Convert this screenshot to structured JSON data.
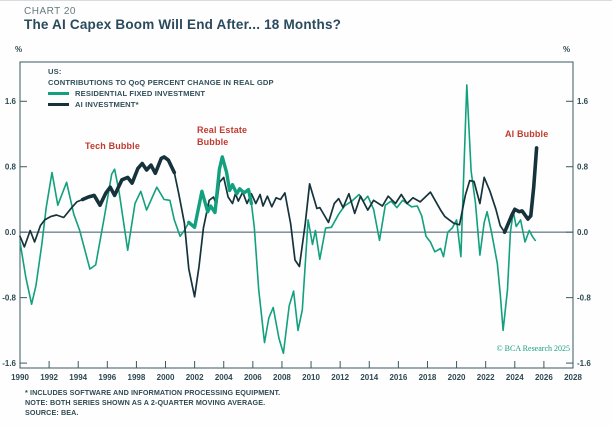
{
  "page": {
    "chart_label": "CHART 20",
    "title": "The AI Capex Boom Will End After... 18 Months?"
  },
  "axis": {
    "unit": "%"
  },
  "legend": {
    "region": "US:",
    "subtitle": "CONTRIBUTIONS TO QoQ PERCENT CHANGE IN REAL GDP",
    "items": [
      {
        "label": "RESIDENTIAL FIXED INVESTMENT",
        "color": "#12a07e"
      },
      {
        "label": "AI INVESTMENT*",
        "color": "#16333b"
      }
    ]
  },
  "annotations": {
    "tech": "Tech Bubble",
    "real_estate": "Real Estate\nBubble",
    "ai": "AI Bubble",
    "color": "#c03a2e"
  },
  "watermark": "© BCA Research 2025",
  "footnotes": [
    "* INCLUDES SOFTWARE AND INFORMATION PROCESSING EQUIPMENT.",
    "NOTE: BOTH SERIES SHOWN AS A 2-QUARTER MOVING AVERAGE.",
    "SOURCE: BEA."
  ],
  "chart_data": {
    "type": "line",
    "title": "The AI Capex Boom Will End After... 18 Months?",
    "subtitle": "US: CONTRIBUTIONS TO QoQ PERCENT CHANGE IN REAL GDP",
    "xlabel": "Year",
    "ylabel": "%",
    "grid": false,
    "legend_position": "top-left",
    "xlim": [
      1990,
      2028
    ],
    "ylim": [
      -1.66,
      2.08
    ],
    "x_ticks": [
      1990,
      1992,
      1994,
      1996,
      1998,
      2000,
      2002,
      2004,
      2006,
      2008,
      2010,
      2012,
      2014,
      2016,
      2018,
      2020,
      2022,
      2024,
      2026,
      2028
    ],
    "y_ticks": [
      {
        "v": 1.6,
        "label": "1.6"
      },
      {
        "v": 0.8,
        "label": "0.8"
      },
      {
        "v": 0.0,
        "label": "0.0"
      },
      {
        "v": -0.8,
        "label": "-0.8"
      },
      {
        "v": -1.6,
        "label": "-1.6"
      }
    ],
    "axis_color": "#3b5862",
    "series": [
      {
        "id": "residential",
        "name": "RESIDENTIAL FIXED INVESTMENT",
        "color": "#12a07e",
        "width": 1.6,
        "highlight_width": 3.4,
        "highlights": [
          [
            2001.6,
            2006.0
          ]
        ],
        "points": [
          [
            1990.0,
            -0.12
          ],
          [
            1990.4,
            -0.55
          ],
          [
            1990.8,
            -0.88
          ],
          [
            1991.1,
            -0.65
          ],
          [
            1991.5,
            -0.15
          ],
          [
            1991.8,
            0.3
          ],
          [
            1992.2,
            0.73
          ],
          [
            1992.6,
            0.33
          ],
          [
            1993.2,
            0.61
          ],
          [
            1993.7,
            0.22
          ],
          [
            1994.1,
            0.02
          ],
          [
            1994.8,
            -0.45
          ],
          [
            1995.2,
            -0.4
          ],
          [
            1995.8,
            0.19
          ],
          [
            1996.3,
            0.71
          ],
          [
            1996.5,
            0.77
          ],
          [
            1996.8,
            0.5
          ],
          [
            1997.2,
            0.02
          ],
          [
            1997.4,
            -0.22
          ],
          [
            1997.9,
            0.35
          ],
          [
            1998.3,
            0.5
          ],
          [
            1998.7,
            0.27
          ],
          [
            1999.1,
            0.43
          ],
          [
            1999.4,
            0.55
          ],
          [
            1999.9,
            0.4
          ],
          [
            2000.3,
            0.39
          ],
          [
            2000.6,
            0.15
          ],
          [
            2001.0,
            -0.05
          ],
          [
            2001.3,
            0.02
          ],
          [
            2001.6,
            0.12
          ],
          [
            2002.0,
            0.06
          ],
          [
            2002.5,
            0.5
          ],
          [
            2002.9,
            0.25
          ],
          [
            2003.1,
            0.32
          ],
          [
            2003.4,
            0.24
          ],
          [
            2003.7,
            0.77
          ],
          [
            2003.9,
            0.92
          ],
          [
            2004.2,
            0.73
          ],
          [
            2004.4,
            0.51
          ],
          [
            2004.6,
            0.58
          ],
          [
            2004.9,
            0.47
          ],
          [
            2005.1,
            0.53
          ],
          [
            2005.4,
            0.48
          ],
          [
            2005.7,
            0.52
          ],
          [
            2005.9,
            0.35
          ],
          [
            2006.1,
            0.06
          ],
          [
            2006.4,
            -0.7
          ],
          [
            2006.8,
            -1.35
          ],
          [
            2007.1,
            -1.05
          ],
          [
            2007.4,
            -0.92
          ],
          [
            2007.8,
            -1.3
          ],
          [
            2008.1,
            -1.48
          ],
          [
            2008.5,
            -0.9
          ],
          [
            2008.8,
            -0.72
          ],
          [
            2009.1,
            -1.2
          ],
          [
            2009.4,
            -0.95
          ],
          [
            2009.8,
            0.15
          ],
          [
            2010.1,
            -0.15
          ],
          [
            2010.3,
            0.02
          ],
          [
            2010.6,
            -0.33
          ],
          [
            2011.0,
            0.05
          ],
          [
            2011.4,
            0.06
          ],
          [
            2011.9,
            0.22
          ],
          [
            2012.3,
            0.32
          ],
          [
            2012.8,
            0.38
          ],
          [
            2013.3,
            0.46
          ],
          [
            2013.6,
            0.38
          ],
          [
            2013.9,
            0.44
          ],
          [
            2014.3,
            0.28
          ],
          [
            2014.7,
            -0.1
          ],
          [
            2015.1,
            0.33
          ],
          [
            2015.5,
            0.38
          ],
          [
            2015.9,
            0.3
          ],
          [
            2016.3,
            0.39
          ],
          [
            2016.9,
            0.31
          ],
          [
            2017.3,
            0.32
          ],
          [
            2017.6,
            0.2
          ],
          [
            2017.9,
            -0.05
          ],
          [
            2018.2,
            -0.12
          ],
          [
            2018.5,
            -0.24
          ],
          [
            2018.9,
            -0.2
          ],
          [
            2019.1,
            -0.3
          ],
          [
            2019.4,
            0.0
          ],
          [
            2019.7,
            0.05
          ],
          [
            2020.0,
            0.15
          ],
          [
            2020.3,
            -0.3
          ],
          [
            2020.7,
            1.8
          ],
          [
            2021.0,
            0.75
          ],
          [
            2021.3,
            0.35
          ],
          [
            2021.6,
            -0.28
          ],
          [
            2021.9,
            0.12
          ],
          [
            2022.1,
            0.25
          ],
          [
            2022.4,
            0.0
          ],
          [
            2022.8,
            -0.38
          ],
          [
            2023.0,
            -0.75
          ],
          [
            2023.2,
            -1.2
          ],
          [
            2023.5,
            -0.7
          ],
          [
            2023.7,
            0.0
          ],
          [
            2023.9,
            0.25
          ],
          [
            2024.1,
            0.07
          ],
          [
            2024.4,
            0.15
          ],
          [
            2024.7,
            -0.12
          ],
          [
            2025.0,
            0.02
          ],
          [
            2025.2,
            -0.05
          ],
          [
            2025.4,
            -0.1
          ]
        ]
      },
      {
        "id": "ai",
        "name": "AI INVESTMENT*",
        "color": "#16333b",
        "width": 1.7,
        "highlight_width": 3.6,
        "highlights": [
          [
            1994.3,
            2000.7
          ],
          [
            2023.3,
            2025.5
          ]
        ],
        "points": [
          [
            1990.0,
            -0.05
          ],
          [
            1990.3,
            -0.18
          ],
          [
            1990.7,
            0.02
          ],
          [
            1991.0,
            -0.12
          ],
          [
            1991.4,
            0.08
          ],
          [
            1991.7,
            0.15
          ],
          [
            1992.1,
            0.19
          ],
          [
            1992.5,
            0.21
          ],
          [
            1993.0,
            0.18
          ],
          [
            1993.6,
            0.31
          ],
          [
            1993.9,
            0.37
          ],
          [
            1994.3,
            0.4
          ],
          [
            1994.7,
            0.43
          ],
          [
            1995.1,
            0.45
          ],
          [
            1995.5,
            0.33
          ],
          [
            1995.9,
            0.48
          ],
          [
            1996.2,
            0.55
          ],
          [
            1996.5,
            0.45
          ],
          [
            1997.0,
            0.64
          ],
          [
            1997.4,
            0.67
          ],
          [
            1997.7,
            0.6
          ],
          [
            1998.1,
            0.78
          ],
          [
            1998.4,
            0.84
          ],
          [
            1998.7,
            0.76
          ],
          [
            1999.0,
            0.82
          ],
          [
            1999.3,
            0.72
          ],
          [
            1999.7,
            0.9
          ],
          [
            1999.9,
            0.92
          ],
          [
            2000.2,
            0.88
          ],
          [
            2000.6,
            0.73
          ],
          [
            2000.9,
            0.48
          ],
          [
            2001.3,
            0.11
          ],
          [
            2001.6,
            -0.45
          ],
          [
            2002.0,
            -0.79
          ],
          [
            2002.3,
            -0.42
          ],
          [
            2002.6,
            0.05
          ],
          [
            2003.0,
            0.39
          ],
          [
            2003.3,
            0.43
          ],
          [
            2003.5,
            0.33
          ],
          [
            2003.7,
            0.61
          ],
          [
            2004.0,
            0.67
          ],
          [
            2004.3,
            0.43
          ],
          [
            2004.6,
            0.35
          ],
          [
            2004.8,
            0.47
          ],
          [
            2005.0,
            0.38
          ],
          [
            2005.3,
            0.49
          ],
          [
            2005.6,
            0.35
          ],
          [
            2005.9,
            0.47
          ],
          [
            2006.2,
            0.35
          ],
          [
            2006.5,
            0.46
          ],
          [
            2006.7,
            0.32
          ],
          [
            2007.0,
            0.44
          ],
          [
            2007.3,
            0.31
          ],
          [
            2007.6,
            0.42
          ],
          [
            2007.9,
            0.4
          ],
          [
            2008.2,
            0.48
          ],
          [
            2008.6,
            0.1
          ],
          [
            2008.9,
            -0.34
          ],
          [
            2009.2,
            -0.42
          ],
          [
            2009.6,
            0.1
          ],
          [
            2009.9,
            0.59
          ],
          [
            2010.4,
            0.29
          ],
          [
            2010.6,
            0.3
          ],
          [
            2010.8,
            0.24
          ],
          [
            2011.2,
            0.12
          ],
          [
            2011.6,
            0.35
          ],
          [
            2011.9,
            0.41
          ],
          [
            2012.2,
            0.3
          ],
          [
            2012.6,
            0.47
          ],
          [
            2013.0,
            0.23
          ],
          [
            2013.4,
            0.44
          ],
          [
            2013.9,
            0.27
          ],
          [
            2014.3,
            0.39
          ],
          [
            2014.9,
            0.32
          ],
          [
            2015.3,
            0.44
          ],
          [
            2015.8,
            0.35
          ],
          [
            2016.2,
            0.46
          ],
          [
            2016.6,
            0.35
          ],
          [
            2017.0,
            0.42
          ],
          [
            2017.5,
            0.37
          ],
          [
            2018.2,
            0.49
          ],
          [
            2018.9,
            0.27
          ],
          [
            2019.2,
            0.19
          ],
          [
            2019.5,
            0.15
          ],
          [
            2019.8,
            0.11
          ],
          [
            2020.2,
            0.09
          ],
          [
            2020.6,
            0.45
          ],
          [
            2020.9,
            0.63
          ],
          [
            2021.2,
            0.62
          ],
          [
            2021.6,
            0.35
          ],
          [
            2021.9,
            0.67
          ],
          [
            2022.3,
            0.5
          ],
          [
            2022.7,
            0.28
          ],
          [
            2023.0,
            0.08
          ],
          [
            2023.3,
            0.0
          ],
          [
            2023.8,
            0.21
          ],
          [
            2024.0,
            0.28
          ],
          [
            2024.3,
            0.25
          ],
          [
            2024.5,
            0.26
          ],
          [
            2024.9,
            0.16
          ],
          [
            2025.1,
            0.2
          ],
          [
            2025.3,
            0.55
          ],
          [
            2025.5,
            1.03
          ]
        ]
      }
    ]
  }
}
